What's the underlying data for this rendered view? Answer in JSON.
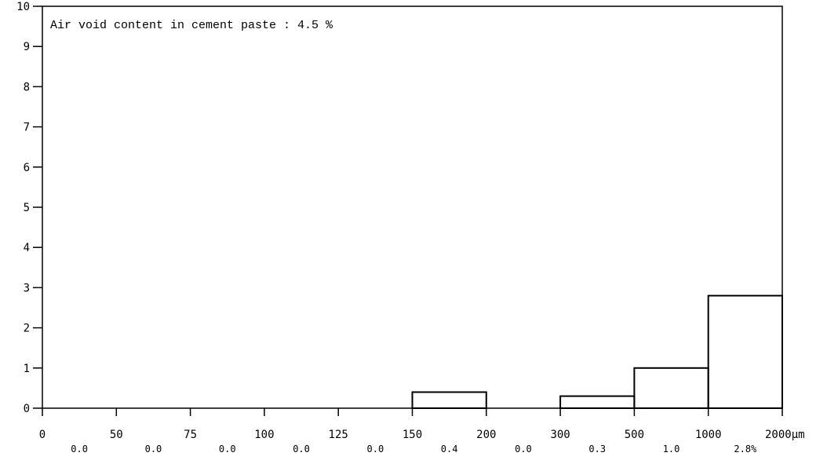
{
  "chart_data": {
    "type": "bar",
    "title": "Air void content in cement paste : 4.5 %",
    "xlabel": "",
    "ylabel": "",
    "x_unit": "µm",
    "ylim": [
      0,
      10
    ],
    "y_ticks": [
      0,
      1,
      2,
      3,
      4,
      5,
      6,
      7,
      8,
      9,
      10
    ],
    "x_ticks": [
      "0",
      "50",
      "75",
      "100",
      "125",
      "150",
      "200",
      "300",
      "500",
      "1000",
      "2000"
    ],
    "categories": [
      "0-50",
      "50-75",
      "75-100",
      "100-125",
      "125-150",
      "150-200",
      "200-300",
      "300-500",
      "500-1000",
      "1000-2000"
    ],
    "values": [
      0.0,
      0.0,
      0.0,
      0.0,
      0.0,
      0.4,
      0.0,
      0.3,
      1.0,
      2.8
    ],
    "value_labels": [
      "0.0",
      "0.0",
      "0.0",
      "0.0",
      "0.0",
      "0.4",
      "0.0",
      "0.3",
      "1.0",
      "2.8%"
    ],
    "grid": false,
    "legend": "none"
  }
}
